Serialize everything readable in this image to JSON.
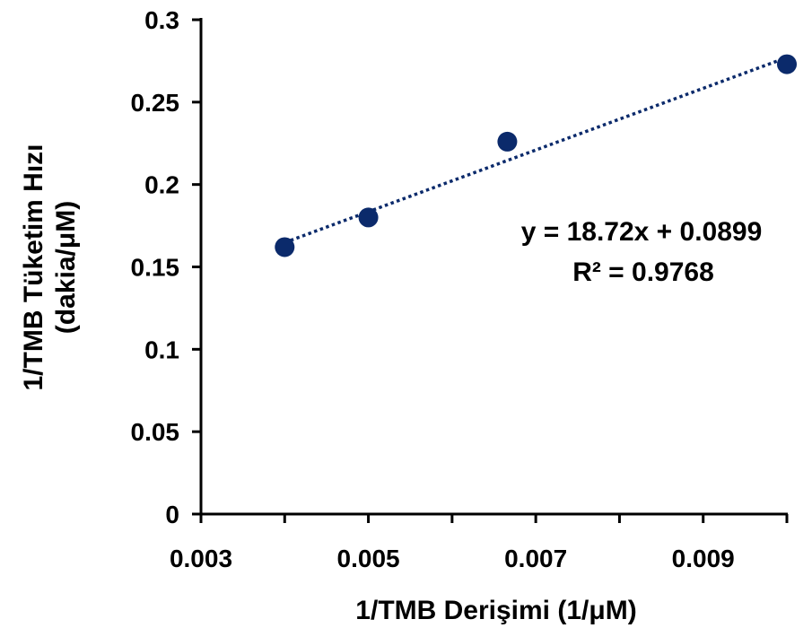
{
  "chart_data": {
    "type": "scatter",
    "xlabel": "1/TMB Derişimi (1/μM)",
    "ylabel_line1": "1/TMB Tüketim Hızı",
    "ylabel_line2": "(dakia/μM)",
    "xlim": [
      0.003,
      0.01
    ],
    "ylim": [
      0,
      0.3
    ],
    "x_ticks": [
      "0.003",
      "0.005",
      "0.007",
      "0.009"
    ],
    "x_tick_values": [
      0.003,
      0.005,
      0.007,
      0.009
    ],
    "x_minor_tick_values": [
      0.004,
      0.006,
      0.008,
      0.01
    ],
    "y_ticks": [
      "0",
      "0.05",
      "0.1",
      "0.15",
      "0.2",
      "0.25",
      "0.3"
    ],
    "y_tick_values": [
      0,
      0.05,
      0.1,
      0.15,
      0.2,
      0.25,
      0.3
    ],
    "series": [
      {
        "x": [
          0.004,
          0.005,
          0.00666,
          0.01
        ],
        "y": [
          0.162,
          0.18,
          0.226,
          0.273
        ]
      }
    ],
    "trendline": {
      "type": "linear",
      "slope": 18.72,
      "intercept": 0.0899,
      "style": "dotted",
      "equation": "y = 18.72x + 0.0899",
      "r_squared": "R² = 0.9768"
    },
    "grid": false,
    "legend": "none",
    "colors": {
      "marker": "#0b2a6b",
      "trendline": "#0b2a6b",
      "axis": "#000000"
    }
  }
}
